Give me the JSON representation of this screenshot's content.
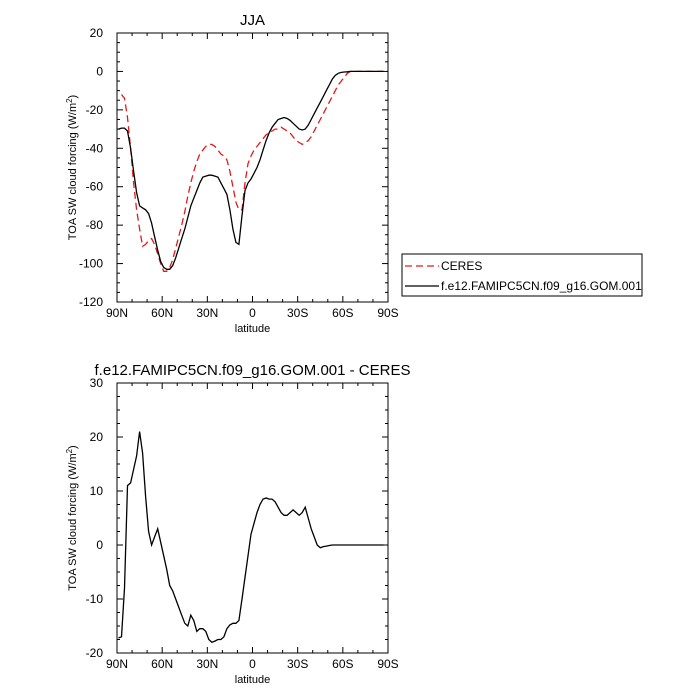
{
  "chart_data": [
    {
      "type": "line",
      "title": "JJA",
      "xlabel": "latitude",
      "ylabel": "TOA SW cloud forcing (W/m²)",
      "ylabel_main": "TOA SW cloud forcing (W/m",
      "ylabel_sup": "2",
      "ylabel_end": ")",
      "xlim": [
        90,
        -90
      ],
      "ylim": [
        -120,
        20
      ],
      "xticks": [
        90,
        60,
        30,
        0,
        -30,
        -60,
        -90
      ],
      "xtick_labels": [
        "90N",
        "60N",
        "30N",
        "0",
        "30S",
        "60S",
        "90S"
      ],
      "yticks": [
        -120,
        -100,
        -80,
        -60,
        -40,
        -20,
        0,
        20
      ],
      "ytick_labels": [
        "-120",
        "-100",
        "-80",
        "-60",
        "-40",
        "-20",
        "0",
        "20"
      ],
      "legend": "right",
      "series": [
        {
          "name": "CERES",
          "color": "#e41a1c",
          "dash": "dashed",
          "x": [
            87,
            85,
            83,
            81,
            79,
            77,
            75,
            73,
            71,
            69,
            67,
            65,
            63,
            61,
            59,
            57,
            55,
            53,
            51,
            49,
            47,
            45,
            43,
            41,
            39,
            37,
            35,
            33,
            31,
            29,
            27,
            25,
            23,
            21,
            19,
            17,
            15,
            13,
            11,
            9,
            7,
            5,
            3,
            1,
            -1,
            -3,
            -5,
            -7,
            -9,
            -11,
            -13,
            -15,
            -17,
            -19,
            -21,
            -23,
            -25,
            -27,
            -29,
            -31,
            -33,
            -35,
            -37,
            -39,
            -41,
            -43,
            -45,
            -47,
            -49,
            -51,
            -53,
            -55,
            -57,
            -59,
            -61,
            -63,
            -65,
            -67,
            -69,
            -71,
            -73,
            -75,
            -77,
            -79,
            -81,
            -83,
            -85,
            -87
          ],
          "y": [
            -12,
            -14,
            -24,
            -40,
            -58,
            -72,
            -82,
            -91,
            -90,
            -88,
            -87,
            -90,
            -95,
            -100,
            -104,
            -104,
            -102,
            -98,
            -92,
            -86,
            -80,
            -73,
            -65,
            -58,
            -52,
            -47,
            -43,
            -41,
            -39,
            -38,
            -38,
            -39,
            -41,
            -43,
            -44,
            -46,
            -52,
            -60,
            -68,
            -72,
            -72,
            -58,
            -48,
            -44,
            -41,
            -39,
            -37,
            -35,
            -33,
            -32,
            -31,
            -30,
            -30,
            -29,
            -30,
            -31,
            -32,
            -34,
            -36,
            -37,
            -38,
            -37,
            -36,
            -34,
            -31,
            -28,
            -25,
            -22,
            -19,
            -16,
            -13,
            -10,
            -7,
            -5,
            -3,
            -1,
            0,
            0,
            0,
            0,
            0,
            0,
            0,
            0,
            0,
            0,
            0,
            0
          ]
        },
        {
          "name": "f.e12.FAMIPC5CN.f09_g16.GOM.001",
          "color": "#000000",
          "dash": "solid",
          "x": [
            89,
            87,
            85,
            83,
            81,
            79,
            77,
            75,
            73,
            71,
            69,
            67,
            65,
            63,
            61,
            59,
            57,
            55,
            53,
            51,
            49,
            47,
            45,
            43,
            41,
            39,
            37,
            35,
            33,
            31,
            29,
            27,
            25,
            23,
            21,
            19,
            17,
            15,
            13,
            11,
            9,
            7,
            5,
            3,
            1,
            -1,
            -3,
            -5,
            -7,
            -9,
            -11,
            -13,
            -15,
            -17,
            -19,
            -21,
            -23,
            -25,
            -27,
            -29,
            -31,
            -33,
            -35,
            -37,
            -39,
            -41,
            -43,
            -45,
            -47,
            -49,
            -51,
            -53,
            -55,
            -57,
            -59,
            -61,
            -63,
            -65,
            -67,
            -69,
            -71,
            -73,
            -75,
            -77,
            -79,
            -81,
            -83,
            -85,
            -87
          ],
          "y": [
            -30,
            -29.5,
            -29.5,
            -31,
            -40,
            -52,
            -63,
            -70,
            -71,
            -72,
            -74,
            -79,
            -86,
            -93,
            -99,
            -102,
            -103,
            -103,
            -101,
            -97,
            -92,
            -87,
            -82,
            -76,
            -70,
            -66,
            -62,
            -58,
            -55,
            -54.5,
            -54,
            -54,
            -54.5,
            -55,
            -58,
            -61,
            -64,
            -72,
            -82,
            -89,
            -90,
            -75,
            -62,
            -58,
            -56,
            -53,
            -50,
            -46,
            -41,
            -36,
            -32,
            -29,
            -27,
            -25,
            -24.5,
            -24,
            -24.5,
            -25.5,
            -27,
            -28.5,
            -30,
            -30.5,
            -30,
            -28,
            -25,
            -22,
            -19,
            -16,
            -13,
            -10,
            -7,
            -4,
            -2,
            -1,
            -0.5,
            -0.3,
            -0.2,
            0,
            0,
            0,
            0,
            0,
            0,
            0,
            0,
            0,
            0,
            0,
            0
          ]
        }
      ]
    },
    {
      "type": "line",
      "title": "f.e12.FAMIPC5CN.f09_g16.GOM.001 - CERES",
      "xlabel": "latitude",
      "ylabel": "TOA SW cloud forcing (W/m²)",
      "ylabel_main": "TOA SW cloud forcing (W/m",
      "ylabel_sup": "2",
      "ylabel_end": ")",
      "xlim": [
        90,
        -90
      ],
      "ylim": [
        -20,
        30
      ],
      "xticks": [
        90,
        60,
        30,
        0,
        -30,
        -60,
        -90
      ],
      "xtick_labels": [
        "90N",
        "60N",
        "30N",
        "0",
        "30S",
        "60S",
        "90S"
      ],
      "yticks": [
        -20,
        -10,
        0,
        10,
        20,
        30
      ],
      "ytick_labels": [
        "-20",
        "-10",
        "0",
        "10",
        "20",
        "30"
      ],
      "legend": "none",
      "series": [
        {
          "color": "#000000",
          "dash": "solid",
          "x": [
            89,
            87,
            85,
            83,
            81,
            79,
            77,
            75,
            73,
            71,
            69,
            67,
            65,
            63,
            61,
            59,
            57,
            55,
            53,
            51,
            49,
            47,
            45,
            43,
            41,
            39,
            37,
            35,
            33,
            31,
            29,
            27,
            25,
            23,
            21,
            19,
            17,
            15,
            13,
            11,
            9,
            7,
            5,
            3,
            1,
            -1,
            -3,
            -5,
            -7,
            -9,
            -11,
            -13,
            -15,
            -17,
            -19,
            -21,
            -23,
            -25,
            -27,
            -29,
            -31,
            -33,
            -35,
            -37,
            -39,
            -41,
            -43,
            -45,
            -47,
            -49,
            -51,
            -53,
            -55,
            -57,
            -59,
            -61,
            -63,
            -65,
            -67,
            -69,
            -71,
            -73,
            -75,
            -77,
            -79,
            -81,
            -83,
            -85,
            -87
          ],
          "y": [
            -17.2,
            -17,
            -8,
            11,
            11.5,
            14,
            16.5,
            21,
            17,
            9,
            2.5,
            0,
            1.5,
            3,
            0.5,
            -2,
            -4.5,
            -7.5,
            -8.5,
            -10,
            -11.5,
            -13,
            -14.5,
            -15,
            -13,
            -14,
            -16,
            -15.5,
            -15.5,
            -16,
            -17.5,
            -18,
            -17.8,
            -17.5,
            -17.5,
            -17,
            -15.5,
            -14.8,
            -14.5,
            -14.5,
            -14,
            -10,
            -6,
            -2,
            2,
            4,
            6,
            7.5,
            8.5,
            8.7,
            8.5,
            8.5,
            8,
            7,
            6,
            5.5,
            5.5,
            6,
            6.5,
            6,
            5.5,
            6,
            7,
            5,
            3,
            1.5,
            0,
            -0.5,
            -0.3,
            -0.2,
            -0.1,
            0,
            0,
            0,
            0,
            0,
            0,
            0,
            0,
            0,
            0,
            0,
            0,
            0,
            0,
            0,
            0,
            0,
            0
          ]
        }
      ]
    }
  ]
}
